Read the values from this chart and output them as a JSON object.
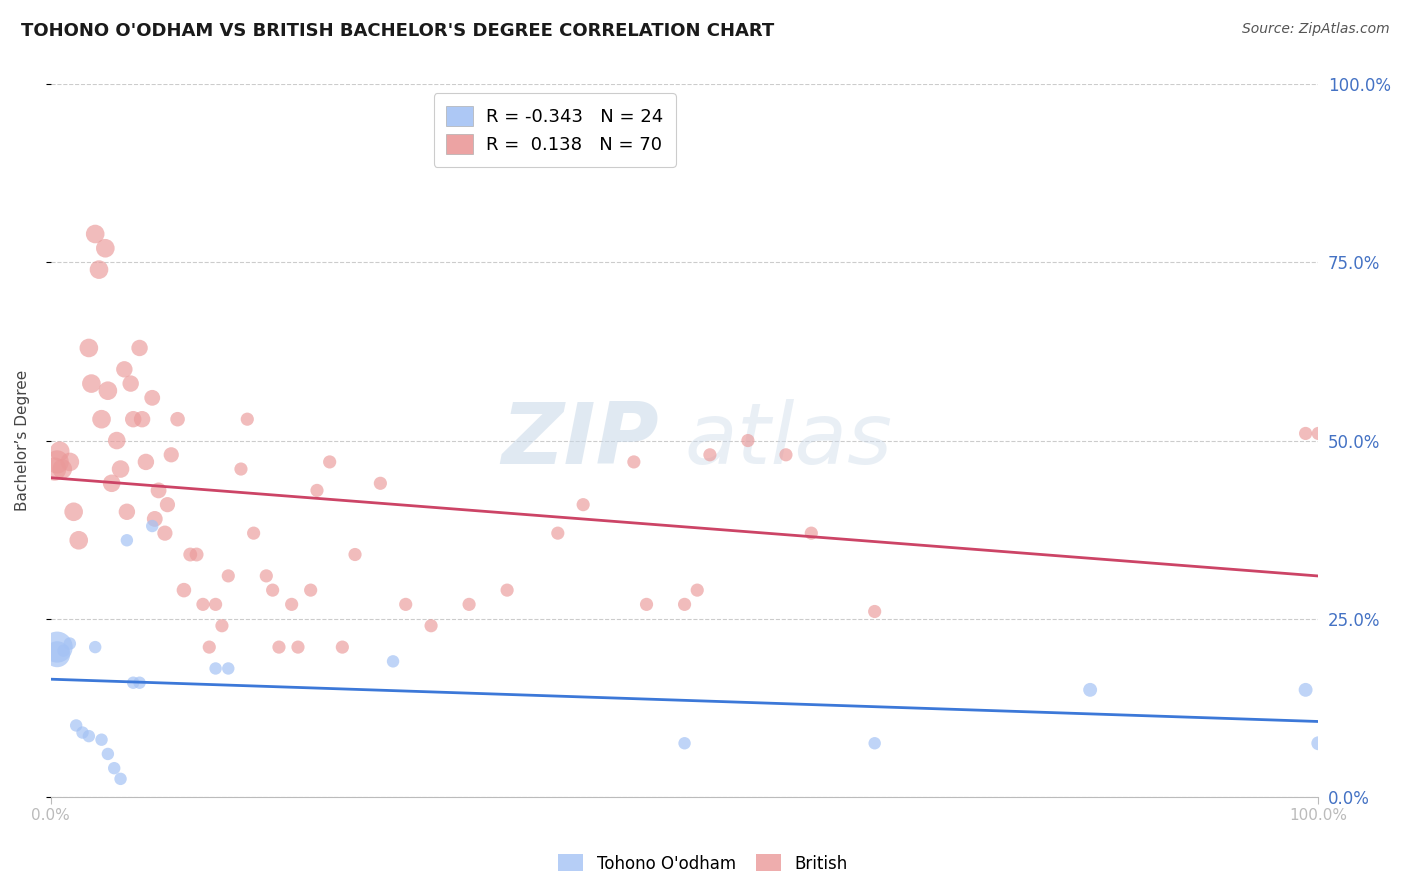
{
  "title": "TOHONO O'ODHAM VS BRITISH BACHELOR'S DEGREE CORRELATION CHART",
  "source": "Source: ZipAtlas.com",
  "ylabel": "Bachelor’s Degree",
  "legend_blue_r": "-0.343",
  "legend_blue_n": "24",
  "legend_pink_r": "0.138",
  "legend_pink_n": "70",
  "blue_color": "#a4c2f4",
  "pink_color": "#ea9999",
  "blue_line_color": "#3c78d8",
  "pink_line_color": "#cc4466",
  "watermark_zip": "ZIP",
  "watermark_atlas": "atlas",
  "ytick_labels": [
    "0.0%",
    "25.0%",
    "50.0%",
    "75.0%",
    "100.0%"
  ],
  "ytick_values": [
    0,
    25,
    50,
    75,
    100
  ],
  "xtick_labels": [
    "0.0%",
    "100.0%"
  ],
  "background_color": "#ffffff",
  "grid_color": "#cccccc",
  "right_label_color": "#4472c4",
  "title_fontsize": 13,
  "source_fontsize": 10,
  "label_fontsize": 11,
  "tick_fontsize": 11,
  "blue_scatter_x": [
    0.5,
    0.5,
    1.0,
    1.5,
    2.0,
    2.5,
    3.0,
    3.5,
    4.0,
    4.5,
    5.0,
    5.5,
    6.0,
    6.5,
    7.0,
    8.0,
    13.0,
    14.0,
    27.0,
    50.0,
    65.0,
    82.0,
    99.0,
    100.0
  ],
  "blue_scatter_y": [
    20.0,
    21.0,
    20.5,
    21.5,
    10.0,
    9.0,
    8.5,
    21.0,
    8.0,
    6.0,
    4.0,
    2.5,
    36.0,
    16.0,
    16.0,
    38.0,
    18.0,
    18.0,
    19.0,
    7.5,
    7.5,
    15.0,
    15.0,
    7.5
  ],
  "blue_scatter_size": [
    350,
    500,
    80,
    80,
    80,
    80,
    80,
    80,
    80,
    80,
    80,
    80,
    80,
    80,
    80,
    80,
    80,
    80,
    80,
    80,
    80,
    100,
    100,
    100
  ],
  "pink_scatter_x": [
    0.3,
    0.5,
    0.7,
    0.9,
    1.5,
    1.8,
    2.2,
    3.0,
    3.2,
    3.5,
    3.8,
    4.0,
    4.3,
    4.5,
    4.8,
    5.2,
    5.5,
    5.8,
    6.0,
    6.3,
    6.5,
    7.0,
    7.2,
    7.5,
    8.0,
    8.2,
    8.5,
    9.0,
    9.2,
    9.5,
    10.0,
    10.5,
    11.0,
    11.5,
    12.0,
    12.5,
    13.0,
    13.5,
    14.0,
    15.0,
    15.5,
    16.0,
    17.0,
    17.5,
    18.0,
    19.0,
    19.5,
    20.5,
    21.0,
    22.0,
    23.0,
    24.0,
    26.0,
    28.0,
    30.0,
    33.0,
    36.0,
    40.0,
    42.0,
    46.0,
    47.0,
    50.0,
    51.0,
    52.0,
    55.0,
    58.0,
    60.0,
    65.0,
    99.0,
    100.0
  ],
  "pink_scatter_y": [
    46.0,
    47.0,
    48.5,
    46.0,
    47.0,
    40.0,
    36.0,
    63.0,
    58.0,
    79.0,
    74.0,
    53.0,
    77.0,
    57.0,
    44.0,
    50.0,
    46.0,
    60.0,
    40.0,
    58.0,
    53.0,
    63.0,
    53.0,
    47.0,
    56.0,
    39.0,
    43.0,
    37.0,
    41.0,
    48.0,
    53.0,
    29.0,
    34.0,
    34.0,
    27.0,
    21.0,
    27.0,
    24.0,
    31.0,
    46.0,
    53.0,
    37.0,
    31.0,
    29.0,
    21.0,
    27.0,
    21.0,
    29.0,
    43.0,
    47.0,
    21.0,
    34.0,
    44.0,
    27.0,
    24.0,
    27.0,
    29.0,
    37.0,
    41.0,
    47.0,
    27.0,
    27.0,
    29.0,
    48.0,
    50.0,
    48.0,
    37.0,
    26.0,
    51.0,
    51.0
  ],
  "pink_scatter_size": [
    280,
    280,
    200,
    200,
    180,
    180,
    180,
    180,
    180,
    180,
    180,
    180,
    180,
    180,
    160,
    160,
    160,
    140,
    140,
    140,
    140,
    140,
    140,
    140,
    130,
    130,
    130,
    120,
    120,
    120,
    110,
    110,
    100,
    100,
    90,
    90,
    90,
    90,
    90,
    90,
    90,
    90,
    90,
    90,
    90,
    90,
    90,
    90,
    90,
    90,
    90,
    90,
    90,
    90,
    90,
    90,
    90,
    90,
    90,
    90,
    90,
    90,
    90,
    90,
    90,
    90,
    90,
    90,
    90,
    90
  ]
}
